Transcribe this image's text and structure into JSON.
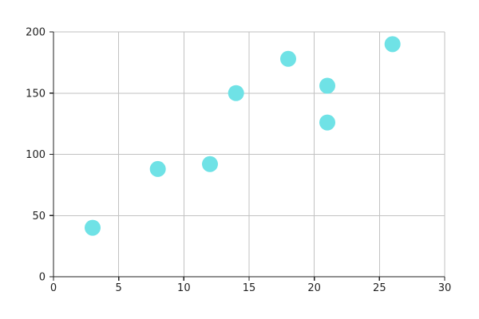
{
  "chart_data": {
    "type": "scatter",
    "title": "",
    "xlabel": "",
    "ylabel": "",
    "xlim": [
      0,
      30
    ],
    "ylim": [
      0,
      200
    ],
    "x_ticks": [
      0,
      5,
      10,
      15,
      20,
      25,
      30
    ],
    "y_ticks": [
      0,
      50,
      100,
      150,
      200
    ],
    "grid": true,
    "legend": "none",
    "series": [
      {
        "color": "#6fe2e6",
        "points": [
          {
            "x": 3,
            "y": 40
          },
          {
            "x": 8,
            "y": 88
          },
          {
            "x": 12,
            "y": 92
          },
          {
            "x": 14,
            "y": 150
          },
          {
            "x": 18,
            "y": 178
          },
          {
            "x": 21,
            "y": 156
          },
          {
            "x": 21,
            "y": 126
          },
          {
            "x": 26,
            "y": 190
          }
        ]
      }
    ]
  }
}
